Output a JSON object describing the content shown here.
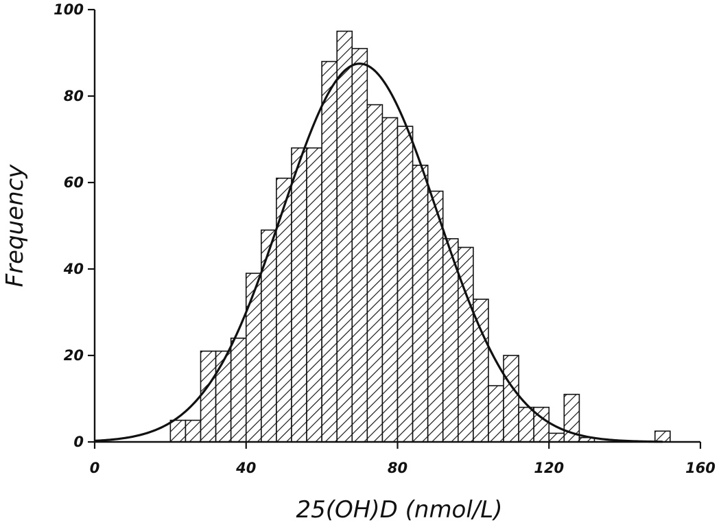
{
  "chart_data": {
    "type": "bar",
    "subtype": "histogram",
    "xlabel": "25(OH)D (nmol/L)",
    "ylabel": "Frequency",
    "xlim": [
      0,
      160
    ],
    "ylim": [
      0,
      100
    ],
    "x_ticks": [
      "0",
      "40",
      "80",
      "120",
      "160"
    ],
    "y_ticks": [
      "0",
      "20",
      "40",
      "60",
      "80",
      "100"
    ],
    "bin_width": 4,
    "bin_starts": [
      20,
      24,
      28,
      32,
      36,
      40,
      44,
      48,
      52,
      56,
      60,
      64,
      68,
      72,
      76,
      80,
      84,
      88,
      92,
      96,
      100,
      104,
      108,
      112,
      116,
      120,
      124,
      128,
      132,
      136,
      140,
      144,
      148
    ],
    "values": [
      5,
      5,
      21,
      21,
      24,
      39,
      49,
      61,
      68,
      68,
      88,
      95,
      91,
      78,
      75,
      73,
      64,
      58,
      47,
      45,
      33,
      13,
      20,
      8,
      8,
      2,
      11,
      1,
      0,
      0,
      0,
      0,
      2.5
    ],
    "fitted_curve": {
      "type": "normal",
      "x_start": 0,
      "x_end": 150,
      "mean": 70,
      "peak": 87.5,
      "sd": 20.5
    },
    "grid": false,
    "legend": "none",
    "fill": "diagonal hatch",
    "colors": {
      "bar_stroke": "#111111",
      "hatch": "#111111",
      "curve": "#111111",
      "background": "#ffffff"
    }
  }
}
